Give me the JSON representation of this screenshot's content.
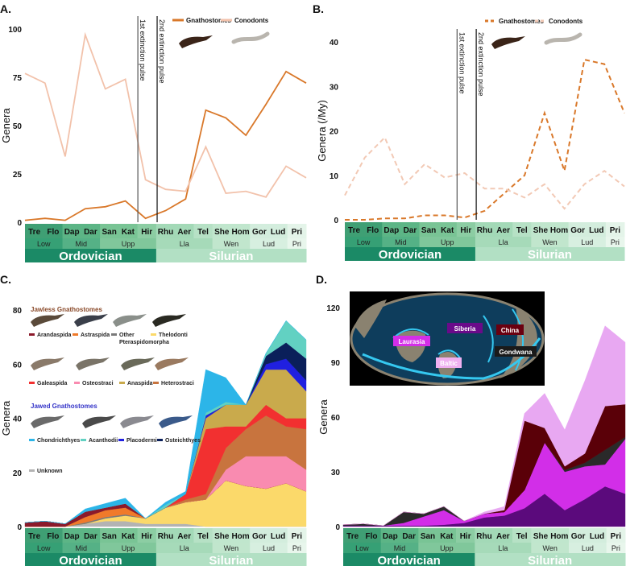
{
  "panel_labels": [
    "A.",
    "B.",
    "C.",
    "D."
  ],
  "timescale": {
    "stages": [
      "Tre",
      "Flo",
      "Dap",
      "Dar",
      "San",
      "Kat",
      "Hir",
      "Rhu",
      "Aer",
      "Tel",
      "She",
      "Hom",
      "Gor",
      "Lud",
      "Pri"
    ],
    "stage_colors": [
      "#3f9f74",
      "#3f9f74",
      "#5cb586",
      "#5cb586",
      "#79c495",
      "#79c495",
      "#8ccda3",
      "#a3d9b7",
      "#a3d9b7",
      "#b6e1c5",
      "#c0e6cd",
      "#c0e6cd",
      "#d3eddd",
      "#d3eddd",
      "#e4f4e9"
    ],
    "series": [
      {
        "label": "Low",
        "span": 2,
        "color": "#36a075"
      },
      {
        "label": "Mid",
        "span": 2,
        "color": "#55b186"
      },
      {
        "label": "Upp",
        "span": 3,
        "color": "#80c79b"
      },
      {
        "label": "Lla",
        "span": 3,
        "color": "#a6dab9"
      },
      {
        "label": "Wen",
        "span": 2,
        "color": "#c1e6cd"
      },
      {
        "label": "Lud",
        "span": 2,
        "color": "#d7efe0"
      },
      {
        "label": "Pri",
        "span": 1,
        "color": "#e8f6ec"
      }
    ],
    "periods": [
      {
        "label": "Ordovician",
        "span": 7,
        "color": "#1b8a66"
      },
      {
        "label": "Silurian",
        "span": 8,
        "color": "#b2e0c4"
      }
    ]
  },
  "extinction_pulses": [
    {
      "label": "1st extinction pulse",
      "boundary": "Kat-Hir"
    },
    {
      "label": "2nd extinction pulse",
      "boundary": "Hir-Rhu"
    }
  ],
  "chart_data": [
    {
      "panel": "A.",
      "type": "line",
      "ylabel": "Genera",
      "ylim": [
        0,
        100
      ],
      "yticks": [
        "0",
        "25",
        "50",
        "75",
        "100"
      ],
      "legend_position": "top-right",
      "series": [
        {
          "name": "Gnathostomes",
          "color": "#d9782a",
          "dashed": false,
          "values": [
            1,
            2,
            1,
            7,
            8,
            11,
            2,
            6,
            12,
            58,
            54,
            45,
            61,
            78,
            72
          ]
        },
        {
          "name": "Conodonts",
          "color": "#f2c2ab",
          "dashed": false,
          "values": [
            77,
            72,
            34,
            97,
            69,
            74,
            22,
            17,
            16,
            39,
            15,
            16,
            13,
            29,
            23
          ]
        }
      ]
    },
    {
      "panel": "B.",
      "type": "line",
      "ylabel": "Genera (/My)",
      "ylim": [
        0,
        45
      ],
      "yticks": [
        "0",
        "10",
        "20",
        "30",
        "40"
      ],
      "legend_position": "top-right",
      "series": [
        {
          "name": "Gnathostomes",
          "color": "#d9782a",
          "dashed": true,
          "values": [
            0,
            0,
            0.3,
            0.3,
            1,
            1,
            0.5,
            2,
            6,
            10,
            24,
            11,
            36,
            35,
            24
          ]
        },
        {
          "name": "Conodonts",
          "color": "#f2c9b5",
          "dashed": true,
          "values": [
            5.5,
            14,
            18.5,
            8,
            12.5,
            9.5,
            10.5,
            7,
            7,
            5,
            8,
            2.5,
            8,
            11,
            7.5
          ]
        }
      ]
    },
    {
      "panel": "C.",
      "type": "area",
      "stacked": true,
      "ylabel": "Genera",
      "ylim": [
        0,
        85
      ],
      "yticks": [
        "0",
        "20",
        "40",
        "60",
        "80"
      ],
      "legend_groups": [
        {
          "title": "Jawless Gnathostomes",
          "color": "#8a4a2a",
          "items": [
            "Arandaspida",
            "Astraspida",
            "Other Pteraspidomorpha",
            "Thelodonti",
            "Galeaspida",
            "Osteostraci",
            "Anaspida",
            "Heterostraci"
          ]
        },
        {
          "title": "Jawed Gnathostomes",
          "color": "#3434c8",
          "items": [
            "Chondrichthyes",
            "Acanthodii",
            "Placodermi",
            "Osteichthyes"
          ]
        },
        {
          "title": "",
          "color": "#000000",
          "items": [
            "Unknown"
          ]
        }
      ],
      "series": [
        {
          "name": "Unknown",
          "color": "#b3b3b3",
          "values": [
            0,
            0,
            0,
            1,
            2,
            2,
            1,
            1,
            1,
            0,
            0,
            0,
            0,
            0,
            0
          ]
        },
        {
          "name": "Thelodonti",
          "color": "#fbd96a",
          "values": [
            0,
            0,
            0,
            0,
            1,
            2,
            2,
            6,
            8,
            10,
            17,
            15,
            14,
            16,
            13
          ]
        },
        {
          "name": "Other Pteraspidomorpha",
          "color": "#7a7a7a",
          "values": [
            0,
            0,
            0,
            0.5,
            0.5,
            0.5,
            0,
            0,
            0,
            0,
            0,
            0,
            0,
            0,
            0
          ]
        },
        {
          "name": "Astraspida",
          "color": "#f07a2a",
          "values": [
            0,
            0,
            0,
            2,
            2.5,
            2.5,
            0,
            0,
            0,
            0,
            0,
            0,
            0,
            0,
            0
          ]
        },
        {
          "name": "Arandaspida",
          "color": "#8b1a2b",
          "values": [
            1.5,
            2,
            1,
            2,
            1,
            1.5,
            0,
            0,
            0,
            0,
            0,
            0,
            0,
            0,
            0
          ]
        },
        {
          "name": "Osteostraci",
          "color": "#f98bb0",
          "values": [
            0,
            0,
            0,
            0,
            0,
            0,
            0,
            0,
            0,
            0,
            4,
            11,
            12,
            10,
            8
          ]
        },
        {
          "name": "Heterostraci",
          "color": "#c8743e",
          "values": [
            0,
            0,
            0,
            0,
            0,
            0,
            0,
            0,
            1,
            2,
            8,
            10,
            15,
            11,
            15
          ]
        },
        {
          "name": "Galeaspida",
          "color": "#f23030",
          "values": [
            0,
            0,
            0,
            0,
            0,
            0,
            0,
            0,
            2,
            24,
            8,
            1,
            4,
            3,
            4
          ]
        },
        {
          "name": "Anaspida",
          "color": "#c9aa4c",
          "values": [
            0,
            0,
            0,
            0,
            0,
            0,
            0,
            0,
            0,
            4,
            8,
            8,
            13,
            18,
            10
          ]
        },
        {
          "name": "Placodermi",
          "color": "#2020e0",
          "values": [
            0,
            0,
            0,
            0,
            0,
            0,
            0,
            0,
            0,
            1,
            0,
            0,
            2,
            4,
            4
          ]
        },
        {
          "name": "Osteichthyes",
          "color": "#0a1f5a",
          "values": [
            0,
            0,
            0,
            0,
            0,
            0,
            0,
            0,
            0,
            0,
            0,
            0,
            3,
            6,
            8
          ]
        },
        {
          "name": "Acanthodii",
          "color": "#62d1c2",
          "values": [
            0,
            0,
            0,
            0,
            0,
            0,
            0,
            1,
            0,
            1,
            1,
            0,
            1,
            8,
            7
          ]
        },
        {
          "name": "Chondrichthyes",
          "color": "#2cb5e8",
          "values": [
            0,
            0,
            0,
            1,
            1.5,
            2,
            0,
            1,
            1,
            16,
            9,
            0,
            0,
            0,
            0
          ]
        }
      ]
    },
    {
      "panel": "D.",
      "type": "area",
      "stacked": true,
      "ylabel": "Genera",
      "ylim": [
        0,
        130
      ],
      "yticks": [
        "0",
        "30",
        "60",
        "90",
        "120"
      ],
      "map_labels": [
        {
          "name": "Laurasia",
          "bg": "#d42ee8",
          "fg": "#ffffff"
        },
        {
          "name": "Siberia",
          "bg": "#6a0a8a",
          "fg": "#ffffff"
        },
        {
          "name": "Baltic",
          "bg": "#f0b0f0",
          "fg": "#ffffff"
        },
        {
          "name": "China",
          "bg": "#6a0010",
          "fg": "#ffffff"
        },
        {
          "name": "Gondwana",
          "bg": "#1a1a1a",
          "fg": "#ffffff"
        }
      ],
      "series": [
        {
          "name": "Siberia",
          "color": "#5b0a7c",
          "values": [
            0.5,
            0.5,
            0.5,
            0.5,
            0.5,
            1,
            2,
            5,
            6,
            10,
            18,
            9,
            15,
            22,
            18
          ]
        },
        {
          "name": "Laurasia",
          "color": "#d22ee8",
          "values": [
            0,
            0,
            0,
            1.5,
            5,
            8,
            1,
            2,
            2,
            10,
            28,
            21,
            18,
            12,
            30
          ]
        },
        {
          "name": "Gondwana",
          "color": "#2a2a2a",
          "values": [
            0.5,
            1,
            0,
            6,
            1.5,
            2,
            0,
            0,
            0,
            0,
            0,
            1,
            2,
            8,
            1
          ]
        },
        {
          "name": "China",
          "color": "#5a0008",
          "values": [
            0,
            0,
            0,
            0,
            0,
            0,
            0,
            0,
            1,
            38,
            8,
            2,
            5,
            24,
            18
          ]
        },
        {
          "name": "Baltic",
          "color": "#e8a8f2",
          "values": [
            0,
            0,
            0,
            0,
            0,
            0,
            0,
            1,
            2,
            4,
            19,
            20,
            40,
            44,
            34
          ]
        }
      ]
    }
  ]
}
